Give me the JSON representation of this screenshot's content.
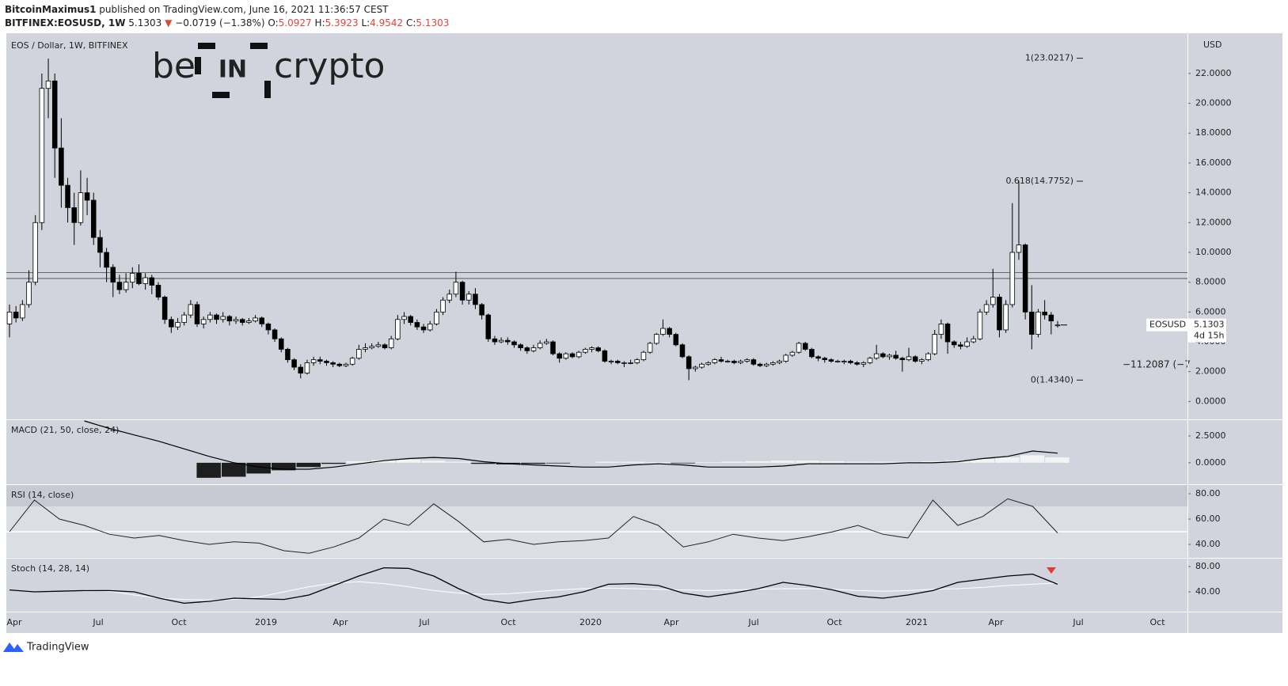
{
  "header": {
    "author": "BitcoinMaximus1",
    "published": "published on TradingView.com, June 16, 2021 11:36:57 CEST",
    "symbol": "BITFINEX:EOSUSD, 1W",
    "price": "5.1303",
    "change": "−0.0719 (−1.38%)",
    "o_label": "O:",
    "o": "5.0927",
    "h_label": "H:",
    "h": "5.3923",
    "l_label": "L:",
    "l": "4.9542",
    "c_label": "C:",
    "c": "5.1303"
  },
  "logo": {
    "left": "be",
    "mid": "IN",
    "right": "crypto"
  },
  "footer": {
    "brand": "TradingView"
  },
  "chart_data": {
    "type": "candlestick",
    "title": "EOS / Dollar, 1W, BITFINEX",
    "currency": "USD",
    "up_color": "#ffffff",
    "down_color": "#000000",
    "ylim": [
      -1.2,
      24.7
    ],
    "yticks": [
      {
        "value": 0,
        "label": "0.0000"
      },
      {
        "value": 2,
        "label": "2.0000"
      },
      {
        "value": 4,
        "label": "4.0000"
      },
      {
        "value": 6,
        "label": "6.0000"
      },
      {
        "value": 8,
        "label": "8.0000"
      },
      {
        "value": 10,
        "label": "10.0000"
      },
      {
        "value": 12,
        "label": "12.0000"
      },
      {
        "value": 14,
        "label": "14.0000"
      },
      {
        "value": 16,
        "label": "16.0000"
      },
      {
        "value": 18,
        "label": "18.0000"
      },
      {
        "value": 20,
        "label": "20.0000"
      },
      {
        "value": 22,
        "label": "22.0000"
      }
    ],
    "x_ticks": [
      "Apr",
      "Jul",
      "Oct",
      "2019",
      "Apr",
      "Jul",
      "Oct",
      "2020",
      "Apr",
      "Jul",
      "Oct",
      "2021",
      "Apr",
      "Jul",
      "Oct"
    ],
    "hlines": [
      8.25,
      8.65
    ],
    "fib_levels": [
      {
        "label": "1(23.0217)",
        "value": 23.0217
      },
      {
        "label": "0.618(14.7752)",
        "value": 14.7752
      },
      {
        "label": "0(1.4340)",
        "value": 1.434
      }
    ],
    "symbol_label": "EOSUSD",
    "last_price": {
      "value": 5.1303,
      "label": "5.1303"
    },
    "countdown": "4d 15h",
    "measure_label": "−11.2087 (−7",
    "ohlc": [
      [
        5.2,
        6.5,
        4.3,
        6.0
      ],
      [
        6.0,
        6.4,
        5.3,
        5.6
      ],
      [
        5.6,
        6.8,
        5.4,
        6.5
      ],
      [
        6.5,
        8.8,
        6.3,
        8.0
      ],
      [
        8.0,
        12.5,
        7.8,
        12.0
      ],
      [
        12.0,
        22.0,
        11.5,
        21.0
      ],
      [
        21.0,
        23.0,
        19.0,
        21.5
      ],
      [
        21.5,
        22.0,
        15.0,
        17.0
      ],
      [
        17.0,
        19.0,
        13.0,
        14.5
      ],
      [
        14.5,
        15.0,
        12.0,
        13.0
      ],
      [
        13.0,
        14.0,
        10.5,
        12.0
      ],
      [
        12.0,
        15.5,
        11.8,
        14.0
      ],
      [
        14.0,
        15.0,
        12.5,
        13.5
      ],
      [
        13.5,
        14.0,
        10.5,
        11.0
      ],
      [
        11.0,
        11.5,
        9.0,
        10.0
      ],
      [
        10.0,
        10.3,
        8.0,
        9.0
      ],
      [
        9.0,
        9.2,
        7.0,
        8.0
      ],
      [
        8.0,
        8.5,
        7.2,
        7.5
      ],
      [
        7.5,
        8.6,
        7.3,
        8.0
      ],
      [
        8.0,
        9.0,
        7.6,
        8.6
      ],
      [
        8.6,
        9.2,
        7.8,
        7.9
      ],
      [
        7.9,
        8.6,
        7.5,
        8.3
      ],
      [
        8.3,
        8.5,
        7.2,
        7.8
      ],
      [
        7.8,
        8.0,
        6.8,
        7.0
      ],
      [
        7.0,
        7.1,
        5.2,
        5.5
      ],
      [
        5.5,
        5.7,
        4.6,
        5.0
      ],
      [
        5.0,
        5.6,
        4.8,
        5.3
      ],
      [
        5.3,
        6.0,
        5.1,
        5.8
      ],
      [
        5.8,
        6.8,
        5.6,
        6.5
      ],
      [
        6.5,
        6.7,
        5.0,
        5.2
      ],
      [
        5.2,
        5.7,
        4.9,
        5.5
      ],
      [
        5.5,
        6.0,
        5.3,
        5.8
      ],
      [
        5.8,
        5.9,
        5.2,
        5.5
      ],
      [
        5.5,
        6.0,
        5.3,
        5.7
      ],
      [
        5.7,
        5.8,
        5.1,
        5.4
      ],
      [
        5.4,
        5.7,
        5.2,
        5.5
      ],
      [
        5.5,
        5.6,
        5.1,
        5.3
      ],
      [
        5.3,
        5.6,
        5.2,
        5.4
      ],
      [
        5.4,
        5.8,
        5.3,
        5.6
      ],
      [
        5.6,
        5.7,
        5.0,
        5.2
      ],
      [
        5.2,
        5.3,
        4.5,
        4.8
      ],
      [
        4.8,
        4.9,
        4.0,
        4.2
      ],
      [
        4.2,
        4.3,
        3.3,
        3.5
      ],
      [
        3.5,
        3.6,
        2.6,
        2.8
      ],
      [
        2.8,
        2.9,
        2.1,
        2.3
      ],
      [
        2.3,
        2.5,
        1.55,
        1.9
      ],
      [
        1.9,
        2.8,
        1.8,
        2.6
      ],
      [
        2.6,
        3.0,
        2.4,
        2.8
      ],
      [
        2.8,
        3.0,
        2.5,
        2.7
      ],
      [
        2.7,
        2.8,
        2.4,
        2.6
      ],
      [
        2.6,
        2.7,
        2.3,
        2.5
      ],
      [
        2.5,
        2.6,
        2.3,
        2.4
      ],
      [
        2.4,
        2.6,
        2.3,
        2.5
      ],
      [
        2.5,
        3.0,
        2.4,
        2.9
      ],
      [
        2.9,
        3.8,
        2.8,
        3.5
      ],
      [
        3.5,
        3.9,
        3.3,
        3.6
      ],
      [
        3.6,
        3.9,
        3.5,
        3.7
      ],
      [
        3.7,
        4.0,
        3.6,
        3.8
      ],
      [
        3.8,
        3.9,
        3.5,
        3.6
      ],
      [
        3.6,
        4.4,
        3.5,
        4.2
      ],
      [
        4.2,
        5.8,
        4.1,
        5.5
      ],
      [
        5.5,
        6.0,
        5.2,
        5.7
      ],
      [
        5.7,
        5.8,
        5.1,
        5.3
      ],
      [
        5.3,
        5.5,
        4.8,
        5.0
      ],
      [
        5.0,
        5.2,
        4.6,
        4.8
      ],
      [
        4.8,
        5.4,
        4.7,
        5.2
      ],
      [
        5.2,
        6.2,
        5.1,
        6.0
      ],
      [
        6.0,
        7.0,
        5.8,
        6.8
      ],
      [
        6.8,
        7.5,
        6.6,
        7.2
      ],
      [
        7.2,
        8.7,
        7.0,
        8.0
      ],
      [
        8.0,
        8.1,
        6.5,
        6.8
      ],
      [
        6.8,
        7.4,
        6.5,
        7.2
      ],
      [
        7.2,
        7.6,
        6.2,
        6.5
      ],
      [
        6.5,
        6.6,
        5.5,
        5.8
      ],
      [
        5.8,
        5.9,
        4.0,
        4.2
      ],
      [
        4.2,
        4.4,
        3.8,
        4.0
      ],
      [
        4.0,
        4.3,
        3.9,
        4.1
      ],
      [
        4.1,
        4.3,
        3.8,
        4.0
      ],
      [
        4.0,
        4.1,
        3.6,
        3.8
      ],
      [
        3.8,
        3.9,
        3.4,
        3.6
      ],
      [
        3.6,
        3.7,
        3.2,
        3.4
      ],
      [
        3.4,
        3.8,
        3.3,
        3.6
      ],
      [
        3.6,
        4.1,
        3.5,
        3.9
      ],
      [
        3.9,
        4.2,
        3.8,
        4.0
      ],
      [
        4.0,
        4.1,
        3.1,
        3.2
      ],
      [
        3.2,
        3.3,
        2.6,
        2.9
      ],
      [
        2.9,
        3.3,
        2.8,
        3.2
      ],
      [
        3.2,
        3.3,
        2.9,
        3.0
      ],
      [
        3.0,
        3.4,
        2.9,
        3.3
      ],
      [
        3.3,
        3.6,
        3.2,
        3.5
      ],
      [
        3.5,
        3.7,
        3.3,
        3.6
      ],
      [
        3.6,
        3.7,
        3.3,
        3.4
      ],
      [
        3.4,
        3.5,
        2.6,
        2.7
      ],
      [
        2.7,
        2.8,
        2.5,
        2.7
      ],
      [
        2.7,
        2.8,
        2.5,
        2.6
      ],
      [
        2.6,
        2.7,
        2.3,
        2.6
      ],
      [
        2.6,
        2.8,
        2.5,
        2.6
      ],
      [
        2.6,
        2.9,
        2.5,
        2.8
      ],
      [
        2.8,
        3.4,
        2.7,
        3.3
      ],
      [
        3.3,
        4.0,
        3.2,
        3.9
      ],
      [
        3.9,
        4.6,
        3.8,
        4.5
      ],
      [
        4.5,
        5.5,
        4.4,
        4.9
      ],
      [
        4.9,
        5.0,
        4.3,
        4.5
      ],
      [
        4.5,
        4.6,
        3.7,
        3.8
      ],
      [
        3.8,
        3.9,
        2.9,
        3.0
      ],
      [
        3.0,
        3.1,
        1.43,
        2.2
      ],
      [
        2.2,
        2.4,
        2.0,
        2.3
      ],
      [
        2.3,
        2.6,
        2.2,
        2.5
      ],
      [
        2.5,
        2.7,
        2.4,
        2.6
      ],
      [
        2.6,
        2.9,
        2.5,
        2.8
      ],
      [
        2.8,
        3.0,
        2.6,
        2.7
      ],
      [
        2.7,
        2.8,
        2.6,
        2.7
      ],
      [
        2.7,
        2.8,
        2.5,
        2.6
      ],
      [
        2.6,
        2.8,
        2.5,
        2.7
      ],
      [
        2.7,
        2.9,
        2.6,
        2.8
      ],
      [
        2.8,
        2.9,
        2.4,
        2.5
      ],
      [
        2.5,
        2.6,
        2.3,
        2.4
      ],
      [
        2.4,
        2.6,
        2.3,
        2.5
      ],
      [
        2.5,
        2.7,
        2.4,
        2.6
      ],
      [
        2.6,
        2.8,
        2.5,
        2.7
      ],
      [
        2.7,
        3.2,
        2.6,
        3.1
      ],
      [
        3.1,
        3.4,
        3.0,
        3.3
      ],
      [
        3.3,
        4.0,
        3.2,
        3.9
      ],
      [
        3.9,
        4.0,
        3.4,
        3.5
      ],
      [
        3.5,
        3.6,
        2.9,
        3.0
      ],
      [
        3.0,
        3.1,
        2.7,
        2.9
      ],
      [
        2.9,
        3.0,
        2.6,
        2.8
      ],
      [
        2.8,
        2.9,
        2.6,
        2.7
      ],
      [
        2.7,
        2.8,
        2.6,
        2.7
      ],
      [
        2.7,
        2.8,
        2.5,
        2.7
      ],
      [
        2.7,
        2.8,
        2.5,
        2.6
      ],
      [
        2.6,
        2.7,
        2.4,
        2.5
      ],
      [
        2.5,
        2.7,
        2.3,
        2.6
      ],
      [
        2.6,
        3.0,
        2.5,
        2.9
      ],
      [
        2.9,
        3.8,
        2.8,
        3.2
      ],
      [
        3.2,
        3.3,
        2.9,
        3.0
      ],
      [
        3.0,
        3.2,
        2.8,
        3.1
      ],
      [
        3.1,
        3.4,
        2.8,
        2.9
      ],
      [
        2.9,
        3.0,
        2.0,
        2.8
      ],
      [
        2.8,
        3.6,
        2.7,
        3.0
      ],
      [
        3.0,
        3.1,
        2.6,
        2.7
      ],
      [
        2.7,
        2.9,
        2.5,
        2.8
      ],
      [
        2.8,
        3.3,
        2.7,
        3.2
      ],
      [
        3.2,
        4.8,
        3.1,
        4.5
      ],
      [
        4.5,
        5.5,
        4.2,
        5.2
      ],
      [
        5.2,
        5.3,
        3.2,
        4.0
      ],
      [
        4.0,
        4.1,
        3.6,
        3.8
      ],
      [
        3.8,
        4.0,
        3.5,
        3.7
      ],
      [
        3.7,
        4.3,
        3.6,
        4.0
      ],
      [
        4.0,
        4.4,
        3.9,
        4.2
      ],
      [
        4.2,
        6.2,
        4.1,
        6.0
      ],
      [
        6.0,
        6.8,
        5.8,
        6.5
      ],
      [
        6.5,
        8.9,
        6.3,
        7.0
      ],
      [
        7.0,
        7.2,
        4.3,
        4.8
      ],
      [
        4.8,
        6.8,
        4.6,
        6.5
      ],
      [
        6.5,
        13.3,
        6.3,
        10.0
      ],
      [
        10.0,
        14.8,
        9.5,
        10.5
      ],
      [
        10.5,
        10.6,
        5.5,
        6.0
      ],
      [
        6.0,
        7.8,
        3.5,
        4.5
      ],
      [
        4.5,
        6.2,
        4.3,
        6.0
      ],
      [
        6.0,
        6.8,
        5.5,
        5.8
      ],
      [
        5.8,
        6.0,
        4.5,
        5.4
      ],
      [
        5.0927,
        5.3923,
        4.9542,
        5.1303
      ]
    ],
    "indicators": [
      {
        "type": "macd",
        "title": "MACD (21, 50, close, 24)",
        "ylim": [
          -2,
          4.05
        ],
        "yticks": [
          {
            "value": 0,
            "label": "0.0000"
          },
          {
            "value": 2.5,
            "label": "2.5000"
          }
        ],
        "line_color": "#000000",
        "pos_color": "#f4f4f4",
        "neg_color": "#1e1e1e",
        "line": [
          null,
          null,
          null,
          3.9,
          3.2,
          2.6,
          2.0,
          1.3,
          0.6,
          0.0,
          -0.4,
          -0.6,
          -0.6,
          -0.4,
          -0.1,
          0.2,
          0.4,
          0.5,
          0.4,
          0.1,
          -0.1,
          -0.2,
          -0.3,
          -0.4,
          -0.4,
          -0.2,
          -0.1,
          -0.2,
          -0.4,
          -0.4,
          -0.4,
          -0.3,
          -0.1,
          -0.1,
          -0.1,
          -0.1,
          0.0,
          0.0,
          0.1,
          0.4,
          0.6,
          1.1,
          0.9
        ],
        "histogram": [
          null,
          null,
          null,
          null,
          null,
          null,
          null,
          null,
          -1.4,
          -1.3,
          -1.0,
          -0.7,
          -0.4,
          -0.1,
          0.15,
          0.25,
          0.3,
          0.2,
          0.1,
          -0.1,
          -0.15,
          -0.1,
          -0.05,
          0.0,
          0.1,
          0.1,
          0.05,
          -0.05,
          0.05,
          0.1,
          0.15,
          0.2,
          0.2,
          0.15,
          0.1,
          0.1,
          0.1,
          0.15,
          0.2,
          0.35,
          0.5,
          0.7,
          0.5
        ]
      },
      {
        "type": "rsi",
        "title": "RSI (14, close)",
        "ylim": [
          29.4,
          87.5
        ],
        "yticks": [
          {
            "value": 40,
            "label": "40.00"
          },
          {
            "value": 60,
            "label": "60.00"
          },
          {
            "value": 80,
            "label": "80.00"
          }
        ],
        "band": [
          30,
          70
        ],
        "midline": 50,
        "line_color": "#222222",
        "line": [
          50,
          75,
          60,
          55,
          48,
          45,
          47,
          43,
          40,
          42,
          41,
          35,
          33,
          38,
          45,
          60,
          55,
          72,
          58,
          42,
          44,
          40,
          42,
          43,
          45,
          62,
          55,
          38,
          42,
          48,
          45,
          43,
          46,
          50,
          55,
          48,
          45,
          75,
          55,
          62,
          76,
          70,
          49
        ]
      },
      {
        "type": "stoch",
        "title": "Stoch (14, 28, 14)",
        "ylim": [
          8.75,
          93.75
        ],
        "yticks": [
          {
            "value": 40,
            "label": "40.00"
          },
          {
            "value": 80,
            "label": "80.00"
          }
        ],
        "k_color": "#000000",
        "d_color": "#ffffff",
        "k": [
          43,
          40,
          41,
          42,
          42,
          40,
          30,
          22,
          25,
          30,
          29,
          28,
          35,
          50,
          65,
          78,
          77,
          65,
          45,
          28,
          22,
          28,
          32,
          40,
          52,
          53,
          50,
          38,
          32,
          38,
          45,
          55,
          50,
          43,
          33,
          30,
          35,
          42,
          55,
          60,
          65,
          68,
          52
        ],
        "d": [
          null,
          null,
          null,
          43,
          41,
          35,
          30,
          28,
          27,
          28,
          32,
          40,
          48,
          54,
          56,
          53,
          48,
          42,
          38,
          36,
          37,
          40,
          43,
          45,
          46,
          45,
          44,
          43,
          42,
          43,
          44,
          45,
          45,
          44,
          42,
          41,
          42,
          44,
          45,
          47,
          50,
          52,
          54
        ]
      }
    ]
  }
}
